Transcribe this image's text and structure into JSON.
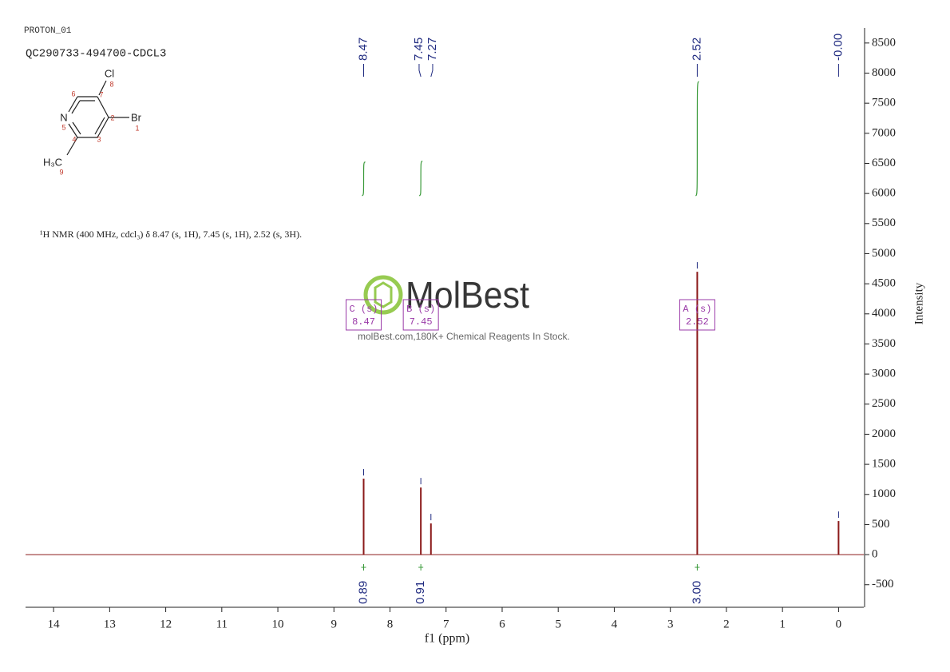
{
  "chart_data": {
    "type": "spectrum",
    "header": [
      "PROTON_01",
      "QC290733-494700-CDCL3"
    ],
    "structure": {
      "atoms": [
        "Cl",
        "N",
        "Br",
        "H₃C"
      ],
      "numbers": [
        "8",
        "6",
        "7",
        "2",
        "5",
        "4",
        "3",
        "1",
        "9"
      ]
    },
    "description": "¹H NMR (400 MHz, cdcl₃) δ 8.47 (s, 1H), 7.45 (s, 1H), 2.52 (s, 3H).",
    "watermark": {
      "brand": "MolBest",
      "tagline": "molBest.com,180K+ Chemical Reagents In Stock."
    },
    "x_label": "f1 (ppm)",
    "y_label": "Intensity",
    "xlim": [
      14.5,
      -0.45
    ],
    "xticks": [
      14,
      13,
      12,
      11,
      10,
      9,
      8,
      7,
      6,
      5,
      4,
      3,
      2,
      1,
      0
    ],
    "ylim": [
      -875,
      8750
    ],
    "yticks": [
      -500,
      0,
      500,
      1000,
      1500,
      2000,
      2500,
      3000,
      3500,
      4000,
      4500,
      5000,
      5500,
      6000,
      6500,
      7000,
      7500,
      8000,
      8500
    ],
    "peaks": {
      "x": [
        8.47,
        7.45,
        7.27,
        2.52,
        0
      ],
      "values": [
        1262,
        1115,
        518,
        4700,
        558
      ],
      "x_labels": [
        "8.47",
        "7.45",
        "7.27",
        "2.52",
        "-0.00"
      ]
    },
    "integrals": {
      "x": [
        8.47,
        7.45,
        2.52
      ],
      "values": [
        0.89,
        0.91,
        3.0
      ],
      "value_labels": [
        "0.89",
        "0.91",
        "3.00"
      ]
    },
    "multiplets": {
      "x": [
        8.47,
        7.45,
        2.52
      ],
      "names": [
        "C (s)",
        "B (s)",
        "A (s)"
      ]
    },
    "color": "#8b1a1a",
    "integral_color": "#3a9a3a",
    "label_color": "#1f2a80",
    "multiplet_color": "#9a3aa8"
  }
}
